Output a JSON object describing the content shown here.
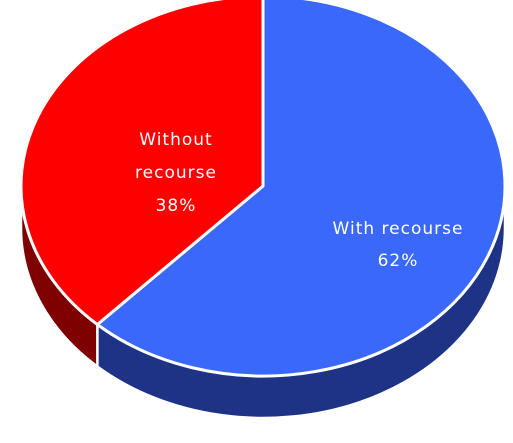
{
  "chart_data": {
    "type": "pie",
    "title": "",
    "style": "3d",
    "slices": [
      {
        "label": "With recourse",
        "value": 62,
        "percent_label": "62%",
        "color": "#3a68fb",
        "side_color": "#1e3385"
      },
      {
        "label": "Without recourse",
        "label_lines": [
          "Without",
          "recourse"
        ],
        "value": 38,
        "percent_label": "38%",
        "color": "#fe0000",
        "side_color": "#7e0000"
      }
    ],
    "legend": "none",
    "data_labels": "inside"
  }
}
